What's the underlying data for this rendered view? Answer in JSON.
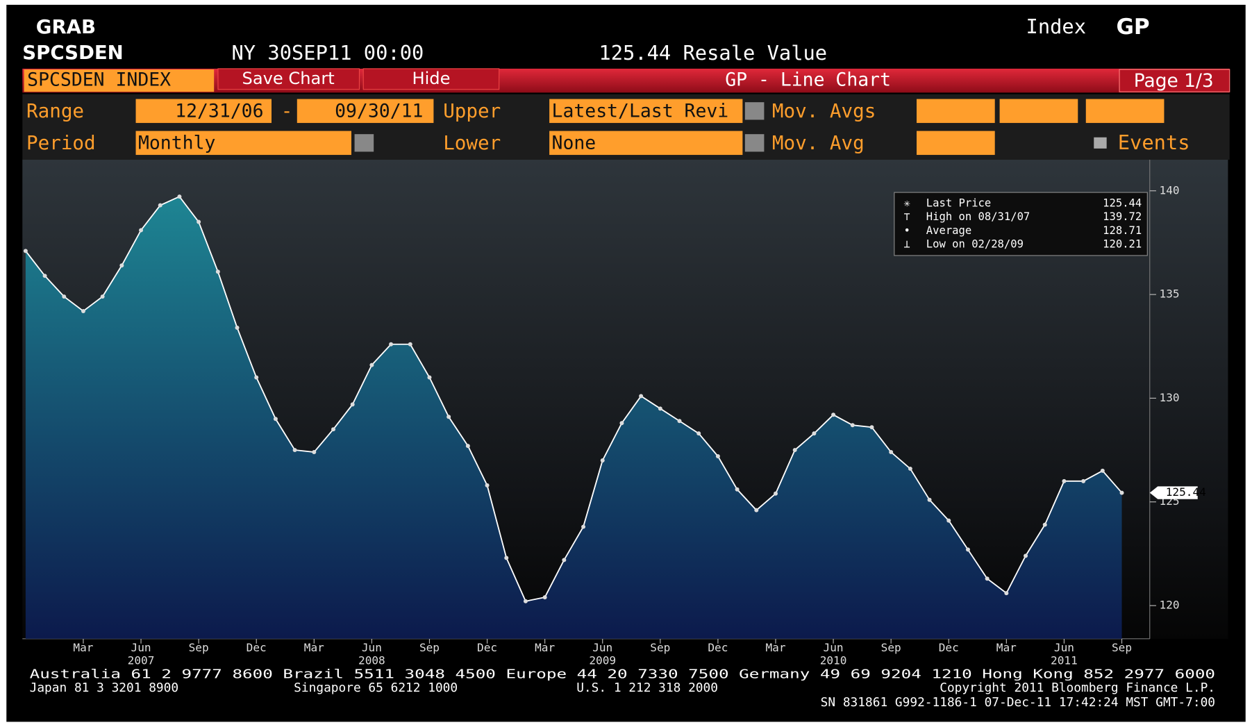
{
  "header": {
    "ticker_label": "GRAB",
    "ticker": "SPCSDEN",
    "datetime": "NY 30SEP11 00:00",
    "quote": "125.44 Resale Value",
    "index_word": "Index",
    "index_code": "GP"
  },
  "toolbar": {
    "security": "SPCSDEN INDEX",
    "save": "Save Chart",
    "hide": "Hide",
    "title": "GP - Line Chart",
    "page": "Page 1/3"
  },
  "controls": {
    "range_label": "Range",
    "range_start": "12/31/06",
    "range_sep": "-",
    "range_end": "09/30/11",
    "upper_label": "Upper",
    "upper_value": "Latest/Last Revi",
    "movavgs_label": "Mov. Avgs",
    "period_label": "Period",
    "period_value": "Monthly",
    "lower_label": "Lower",
    "lower_value": "None",
    "movavg_label": "Mov. Avg",
    "events": "Events"
  },
  "chart_data": {
    "type": "line",
    "x": [
      "2006-12",
      "2007-01",
      "2007-02",
      "2007-03",
      "2007-04",
      "2007-05",
      "2007-06",
      "2007-07",
      "2007-08",
      "2007-09",
      "2007-10",
      "2007-11",
      "2007-12",
      "2008-01",
      "2008-02",
      "2008-03",
      "2008-04",
      "2008-05",
      "2008-06",
      "2008-07",
      "2008-08",
      "2008-09",
      "2008-10",
      "2008-11",
      "2008-12",
      "2009-01",
      "2009-02",
      "2009-03",
      "2009-04",
      "2009-05",
      "2009-06",
      "2009-07",
      "2009-08",
      "2009-09",
      "2009-10",
      "2009-11",
      "2009-12",
      "2010-01",
      "2010-02",
      "2010-03",
      "2010-04",
      "2010-05",
      "2010-06",
      "2010-07",
      "2010-08",
      "2010-09",
      "2010-10",
      "2010-11",
      "2010-12",
      "2011-01",
      "2011-02",
      "2011-03",
      "2011-04",
      "2011-05",
      "2011-06",
      "2011-07",
      "2011-08",
      "2011-09"
    ],
    "series": [
      {
        "name": "Last Price",
        "color": "#ffffff",
        "values": [
          137.1,
          135.9,
          134.9,
          134.2,
          134.9,
          136.4,
          138.1,
          139.3,
          139.72,
          138.5,
          136.1,
          133.4,
          131.0,
          129.0,
          127.5,
          127.4,
          128.5,
          129.7,
          131.6,
          132.6,
          132.6,
          131.0,
          129.1,
          127.7,
          125.8,
          122.3,
          120.21,
          120.4,
          122.2,
          123.8,
          127.0,
          128.8,
          130.1,
          129.5,
          128.9,
          128.3,
          127.2,
          125.6,
          124.6,
          125.4,
          127.5,
          128.3,
          129.2,
          128.7,
          128.6,
          127.4,
          126.6,
          125.1,
          124.1,
          122.7,
          121.3,
          120.6,
          122.4,
          123.9,
          126.0,
          126.0,
          126.5,
          125.44
        ]
      }
    ],
    "xlim": [
      "2006-12",
      "2011-09"
    ],
    "xticks": [
      {
        "value": "2007-03",
        "label": "Mar"
      },
      {
        "value": "2007-06",
        "label": "Jun"
      },
      {
        "value": "2007-09",
        "label": "Sep"
      },
      {
        "value": "2007-12",
        "label": "Dec"
      },
      {
        "value": "2008-03",
        "label": "Mar"
      },
      {
        "value": "2008-06",
        "label": "Jun"
      },
      {
        "value": "2008-09",
        "label": "Sep"
      },
      {
        "value": "2008-12",
        "label": "Dec"
      },
      {
        "value": "2009-03",
        "label": "Mar"
      },
      {
        "value": "2009-06",
        "label": "Jun"
      },
      {
        "value": "2009-09",
        "label": "Sep"
      },
      {
        "value": "2009-12",
        "label": "Dec"
      },
      {
        "value": "2010-03",
        "label": "Mar"
      },
      {
        "value": "2010-06",
        "label": "Jun"
      },
      {
        "value": "2010-09",
        "label": "Sep"
      },
      {
        "value": "2010-12",
        "label": "Dec"
      },
      {
        "value": "2011-03",
        "label": "Mar"
      },
      {
        "value": "2011-06",
        "label": "Jun"
      },
      {
        "value": "2011-09",
        "label": "Sep"
      }
    ],
    "year_ticks": [
      {
        "value": "2007-06",
        "label": "2007"
      },
      {
        "value": "2008-06",
        "label": "2008"
      },
      {
        "value": "2009-06",
        "label": "2009"
      },
      {
        "value": "2010-06",
        "label": "2010"
      },
      {
        "value": "2011-06",
        "label": "2011"
      }
    ],
    "ylim": [
      118.4,
      141.5
    ],
    "yticks": [
      120,
      125,
      130,
      135,
      140
    ],
    "legend": [
      {
        "label": "Last Price",
        "value": 125.44
      },
      {
        "label": "High on 08/31/07",
        "value": 139.72
      },
      {
        "label": "Average",
        "value": 128.71
      },
      {
        "label": "Low on 02/28/09",
        "value": 120.21
      }
    ],
    "area_fill": [
      "#1e8593",
      "#0c1a4c"
    ]
  },
  "footer": {
    "line1": "Australia 61 2 9777 8600 Brazil 5511 3048 4500 Europe 44 20 7330 7500 Germany 49 69 9204 1210 Hong Kong 852 2977 6000",
    "japan": "Japan 81 3 3201 8900",
    "singapore": "Singapore 65 6212 1000",
    "us": "U.S. 1 212 318 2000",
    "copyright": "Copyright 2011 Bloomberg Finance L.P.",
    "line3": "SN 831861 G992-1186-1 07-Dec-11 17:42:24 MST  GMT-7:00"
  }
}
